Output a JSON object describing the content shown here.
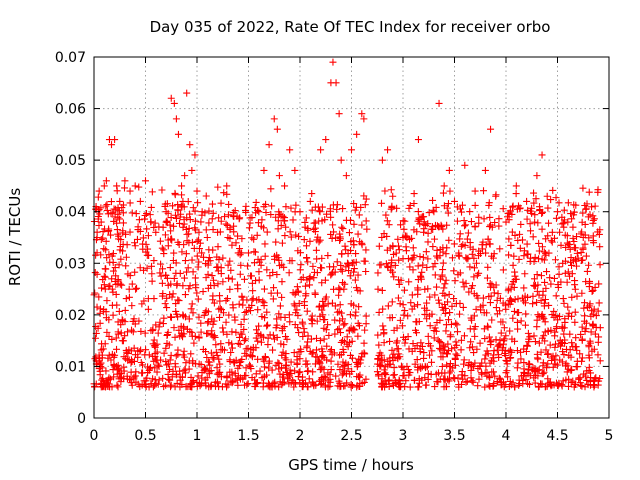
{
  "chart_data": {
    "type": "scatter",
    "title": "Day 035 of 2022, Rate Of TEC Index for receiver orbo",
    "xlabel": "GPS time / hours",
    "ylabel": "ROTI / TECUs",
    "xlim": [
      0,
      5
    ],
    "ylim": [
      0,
      0.07
    ],
    "x_ticks": [
      0,
      0.5,
      1,
      1.5,
      2,
      2.5,
      3,
      3.5,
      4,
      4.5,
      5
    ],
    "x_tick_labels": [
      "0",
      "0.5",
      "1",
      "1.5",
      "2",
      "2.5",
      "3",
      "3.5",
      "4",
      "4.5",
      "5"
    ],
    "y_ticks": [
      0,
      0.01,
      0.02,
      0.03,
      0.04,
      0.05,
      0.06,
      0.07
    ],
    "y_tick_labels": [
      "0",
      "0.01",
      "0.02",
      "0.03",
      "0.04",
      "0.05",
      "0.06",
      "0.07"
    ],
    "grid": true,
    "marker": "+",
    "color": "#ff0000",
    "x_data_extent": [
      0,
      4.92
    ],
    "gap": [
      2.65,
      2.75
    ],
    "series": [
      {
        "points": [
          [
            0.02,
            0.041
          ],
          [
            0.03,
            0.035
          ],
          [
            0.05,
            0.044
          ],
          [
            0.07,
            0.038
          ],
          [
            0.1,
            0.045
          ],
          [
            0.12,
            0.046
          ],
          [
            0.15,
            0.054
          ],
          [
            0.17,
            0.053
          ],
          [
            0.2,
            0.054
          ],
          [
            0.22,
            0.045
          ],
          [
            0.25,
            0.042
          ],
          [
            0.3,
            0.046
          ],
          [
            0.35,
            0.044
          ],
          [
            0.4,
            0.045
          ],
          [
            0.45,
            0.042
          ],
          [
            0.5,
            0.046
          ],
          [
            0.55,
            0.038
          ],
          [
            0.6,
            0.036
          ],
          [
            0.7,
            0.038
          ],
          [
            0.75,
            0.062
          ],
          [
            0.78,
            0.061
          ],
          [
            0.8,
            0.058
          ],
          [
            0.82,
            0.055
          ],
          [
            0.85,
            0.045
          ],
          [
            0.88,
            0.047
          ],
          [
            0.9,
            0.063
          ],
          [
            0.93,
            0.053
          ],
          [
            0.95,
            0.048
          ],
          [
            0.98,
            0.051
          ],
          [
            1.0,
            0.044
          ],
          [
            1.05,
            0.04
          ],
          [
            1.1,
            0.035
          ],
          [
            1.2,
            0.036
          ],
          [
            1.3,
            0.035
          ],
          [
            1.4,
            0.032
          ],
          [
            1.5,
            0.032
          ],
          [
            1.6,
            0.04
          ],
          [
            1.65,
            0.048
          ],
          [
            1.7,
            0.053
          ],
          [
            1.75,
            0.058
          ],
          [
            1.78,
            0.056
          ],
          [
            1.8,
            0.047
          ],
          [
            1.85,
            0.045
          ],
          [
            1.9,
            0.052
          ],
          [
            1.95,
            0.048
          ],
          [
            2.0,
            0.04
          ],
          [
            2.05,
            0.037
          ],
          [
            2.1,
            0.042
          ],
          [
            2.2,
            0.052
          ],
          [
            2.25,
            0.054
          ],
          [
            2.3,
            0.065
          ],
          [
            2.32,
            0.069
          ],
          [
            2.35,
            0.065
          ],
          [
            2.38,
            0.059
          ],
          [
            2.4,
            0.05
          ],
          [
            2.45,
            0.047
          ],
          [
            2.5,
            0.052
          ],
          [
            2.55,
            0.055
          ],
          [
            2.6,
            0.059
          ],
          [
            2.62,
            0.058
          ],
          [
            2.8,
            0.05
          ],
          [
            2.85,
            0.052
          ],
          [
            2.9,
            0.043
          ],
          [
            3.0,
            0.035
          ],
          [
            3.1,
            0.033
          ],
          [
            3.15,
            0.054
          ],
          [
            3.2,
            0.036
          ],
          [
            3.3,
            0.04
          ],
          [
            3.35,
            0.061
          ],
          [
            3.4,
            0.045
          ],
          [
            3.45,
            0.048
          ],
          [
            3.5,
            0.042
          ],
          [
            3.6,
            0.049
          ],
          [
            3.7,
            0.044
          ],
          [
            3.8,
            0.048
          ],
          [
            3.85,
            0.056
          ],
          [
            3.9,
            0.043
          ],
          [
            4.0,
            0.038
          ],
          [
            4.1,
            0.045
          ],
          [
            4.2,
            0.042
          ],
          [
            4.3,
            0.047
          ],
          [
            4.35,
            0.051
          ],
          [
            4.4,
            0.043
          ],
          [
            4.45,
            0.036
          ],
          [
            4.5,
            0.04
          ],
          [
            4.6,
            0.038
          ],
          [
            4.65,
            0.037
          ],
          [
            4.7,
            0.031
          ],
          [
            4.75,
            0.035
          ],
          [
            4.8,
            0.039
          ],
          [
            4.85,
            0.034
          ],
          [
            4.9,
            0.026
          ]
        ]
      }
    ]
  }
}
